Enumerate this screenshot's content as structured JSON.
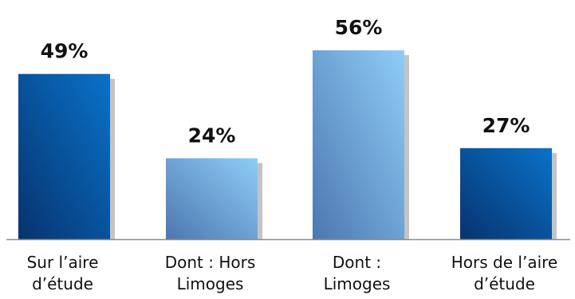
{
  "chart_data": {
    "type": "bar",
    "categories": [
      [
        "Sur l’aire",
        "d’étude"
      ],
      [
        "Dont : Hors",
        "Limoges"
      ],
      [
        "Dont :",
        "Limoges"
      ],
      [
        "Hors de  l’aire",
        "d’étude"
      ]
    ],
    "values": [
      49,
      24,
      56,
      27
    ],
    "value_labels": [
      "49%",
      "24%",
      "56%",
      "27%"
    ],
    "ylim": [
      0,
      60
    ],
    "grid": false,
    "legend": "none",
    "bar_styles": [
      "dark",
      "light",
      "light",
      "dark"
    ],
    "colors": {
      "dark_top": "#0a72c8",
      "dark_bottom": "#07336f",
      "light_top": "#8fcdf8",
      "light_bottom": "#4c77b0",
      "shadow": "#c4c4c4",
      "axis": "#8c8c8c"
    }
  }
}
